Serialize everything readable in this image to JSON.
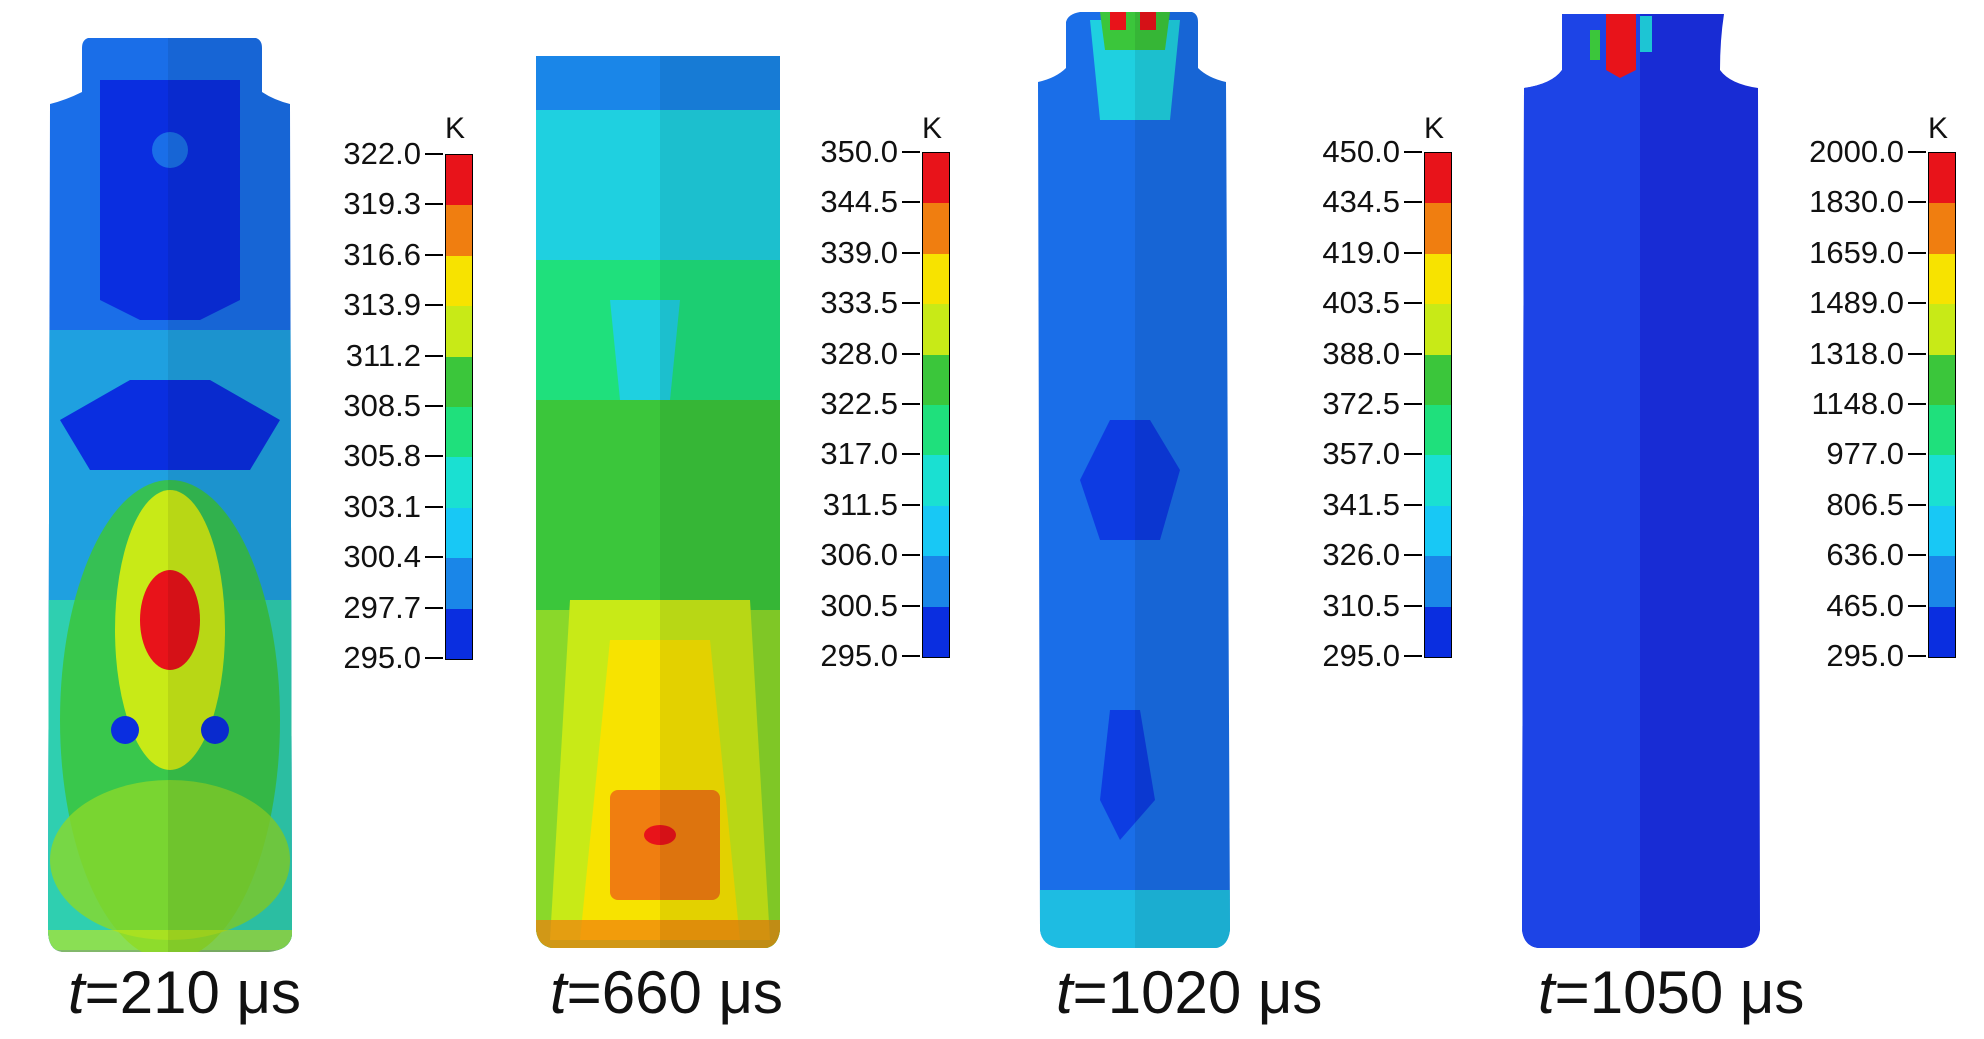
{
  "unit": "K",
  "panels": [
    {
      "t_label": "t",
      "caption": "=210 μs",
      "scale": [
        "322.0",
        "319.3",
        "316.6",
        "313.9",
        "311.2",
        "308.5",
        "305.8",
        "303.1",
        "300.4",
        "297.7",
        "295.0"
      ]
    },
    {
      "t_label": "t",
      "caption": "=660 μs",
      "scale": [
        "350.0",
        "344.5",
        "339.0",
        "333.5",
        "328.0",
        "322.5",
        "317.0",
        "311.5",
        "306.0",
        "300.5",
        "295.0"
      ]
    },
    {
      "t_label": "t",
      "caption": "=1020 μs",
      "scale": [
        "450.0",
        "434.5",
        "419.0",
        "403.5",
        "388.0",
        "372.5",
        "357.0",
        "341.5",
        "326.0",
        "310.5",
        "295.0"
      ]
    },
    {
      "t_label": "t",
      "caption": "=1050 μs",
      "scale": [
        "2000.0",
        "1830.0",
        "1659.0",
        "1489.0",
        "1318.0",
        "1148.0",
        "977.0",
        "806.5",
        "636.0",
        "465.0",
        "295.0"
      ]
    }
  ],
  "colors": {
    "scale_top_to_bottom": [
      "#e8131a",
      "#f07e10",
      "#f7e300",
      "#c8ea17",
      "#3bc63b",
      "#1fe07c",
      "#1ae0d2",
      "#18c8f5",
      "#1a86e8",
      "#0a2ee0"
    ]
  }
}
